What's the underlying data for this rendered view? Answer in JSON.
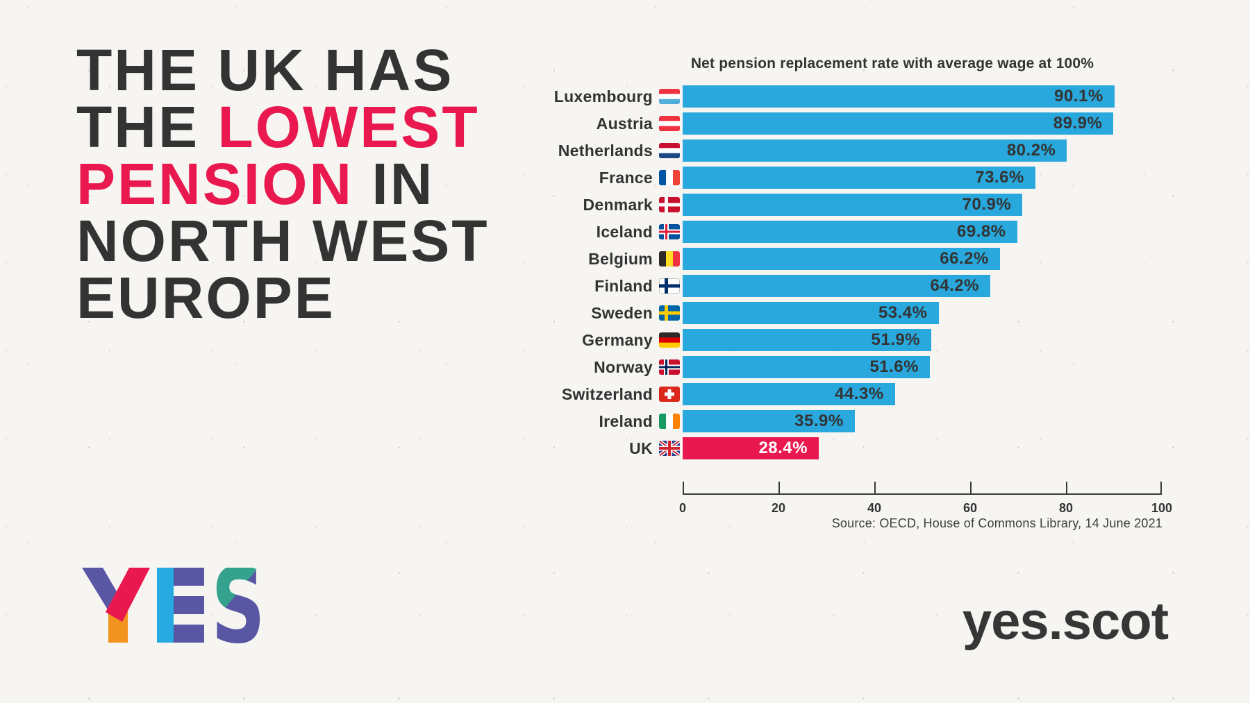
{
  "headline": {
    "lines": [
      {
        "segments": [
          {
            "text": "THE UK HAS",
            "accent": false
          }
        ]
      },
      {
        "segments": [
          {
            "text": "THE ",
            "accent": false
          },
          {
            "text": "LOWEST",
            "accent": true
          }
        ]
      },
      {
        "segments": [
          {
            "text": "PENSION",
            "accent": true
          },
          {
            "text": " IN",
            "accent": false
          }
        ]
      },
      {
        "segments": [
          {
            "text": "NORTH WEST",
            "accent": false
          }
        ]
      },
      {
        "segments": [
          {
            "text": "EUROPE",
            "accent": false
          }
        ]
      }
    ],
    "text_color": "#333333",
    "accent_color": "#E9184F"
  },
  "chart_data": {
    "type": "bar",
    "orientation": "horizontal",
    "title": "Net pension replacement rate with average wage at 100%",
    "categories": [
      "Luxembourg",
      "Austria",
      "Netherlands",
      "France",
      "Denmark",
      "Iceland",
      "Belgium",
      "Finland",
      "Sweden",
      "Germany",
      "Norway",
      "Switzerland",
      "Ireland",
      "UK"
    ],
    "values": [
      90.1,
      89.9,
      80.2,
      73.6,
      70.9,
      69.8,
      66.2,
      64.2,
      53.4,
      51.9,
      51.6,
      44.3,
      35.9,
      28.4
    ],
    "value_labels": [
      "90.1%",
      "89.9%",
      "80.2%",
      "73.6%",
      "70.9%",
      "69.8%",
      "66.2%",
      "64.2%",
      "53.4%",
      "51.9%",
      "51.6%",
      "44.3%",
      "35.9%",
      "28.4%"
    ],
    "flag_icons": [
      "luxembourg",
      "austria",
      "netherlands",
      "france",
      "denmark",
      "iceland",
      "belgium",
      "finland",
      "sweden",
      "germany",
      "norway",
      "switzerland",
      "ireland",
      "uk"
    ],
    "xlim": [
      0,
      100
    ],
    "x_ticks": [
      0,
      20,
      40,
      60,
      80,
      100
    ],
    "grid": false,
    "legend": false,
    "bar_color": "#28A8DD",
    "highlight_category": "UK",
    "highlight_color": "#E9184F",
    "source": "Source: OECD, House of Commons Library, 14 June 2021"
  },
  "footer": {
    "logo_text": "YES",
    "website": "yes.scot",
    "logo_colors": {
      "purple": "#5956A4",
      "pink": "#E9184F",
      "orange": "#F0931F",
      "cyan": "#27AAE1",
      "teal": "#35A28E"
    }
  }
}
